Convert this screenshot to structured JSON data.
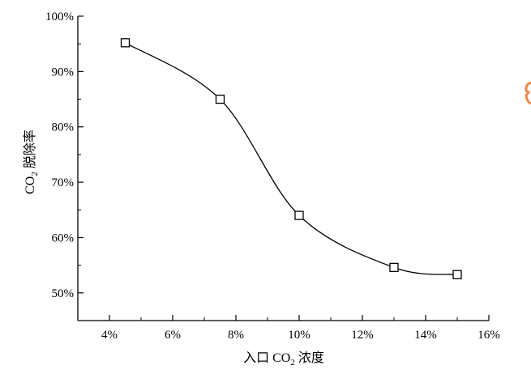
{
  "chart_data": {
    "type": "line",
    "title": "",
    "xlabel_prefix": "入口 CO",
    "xlabel_sub": "2",
    "xlabel_suffix": " 浓度",
    "ylabel_prefix": "CO",
    "ylabel_sub": "2",
    "ylabel_suffix": " 脱除率",
    "xlim": [
      3,
      16
    ],
    "ylim": [
      45,
      100
    ],
    "x_ticks": [
      4,
      6,
      8,
      10,
      12,
      14,
      16
    ],
    "x_tick_labels": [
      "4%",
      "6%",
      "8%",
      "10%",
      "12%",
      "14%",
      "16%"
    ],
    "y_ticks": [
      50,
      60,
      70,
      80,
      90,
      100
    ],
    "y_tick_labels": [
      "50%",
      "60%",
      "70%",
      "80%",
      "90%",
      "100%"
    ],
    "grid": false,
    "series": [
      {
        "marker": "open-square",
        "color": "#000000",
        "x": [
          4.5,
          7.5,
          10,
          13,
          15
        ],
        "y": [
          95.2,
          85.0,
          64.0,
          54.6,
          53.3
        ]
      }
    ]
  }
}
